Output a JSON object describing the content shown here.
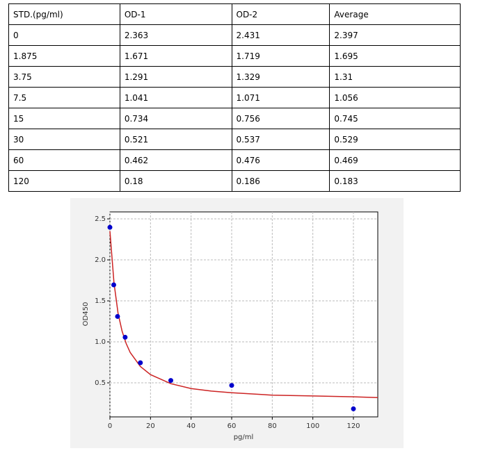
{
  "table": {
    "header": [
      "STD.(pg/ml)",
      "OD-1",
      "OD-2",
      "Average"
    ],
    "rows": [
      [
        "0",
        "2.363",
        "2.431",
        "2.397"
      ],
      [
        "1.875",
        "1.671",
        "1.719",
        "1.695"
      ],
      [
        "3.75",
        "1.291",
        "1.329",
        "1.31"
      ],
      [
        "7.5",
        "1.041",
        "1.071",
        "1.056"
      ],
      [
        "15",
        "0.734",
        "0.756",
        "0.745"
      ],
      [
        "30",
        "0.521",
        "0.537",
        "0.529"
      ],
      [
        "60",
        "0.462",
        "0.476",
        "0.469"
      ],
      [
        "120",
        "0.18",
        "0.186",
        "0.183"
      ]
    ]
  },
  "chart_data": {
    "type": "scatter",
    "x": [
      0,
      1.875,
      3.75,
      7.5,
      15,
      30,
      60,
      120
    ],
    "values": [
      2.397,
      1.695,
      1.31,
      1.056,
      0.745,
      0.529,
      0.469,
      0.183
    ],
    "color": "#0000cc",
    "fit": {
      "x": [
        0,
        2,
        4,
        6,
        8,
        10,
        15,
        20,
        30,
        40,
        50,
        60,
        80,
        100,
        120,
        132
      ],
      "values": [
        2.35,
        1.72,
        1.35,
        1.13,
        0.98,
        0.87,
        0.7,
        0.6,
        0.49,
        0.43,
        0.4,
        0.38,
        0.35,
        0.34,
        0.33,
        0.32
      ],
      "color": "#cc2222"
    },
    "xlabel": "pg/ml",
    "ylabel": "OD450",
    "xlim": [
      0,
      132
    ],
    "ylim": [
      0.085,
      2.585
    ],
    "xticks": [
      0,
      20,
      40,
      60,
      80,
      100,
      120
    ],
    "yticks": [
      0.5,
      {
        "value": 1,
        "label": "1.0"
      },
      1.5,
      {
        "value": 2,
        "label": "2.0"
      },
      2.5
    ],
    "grid": true
  }
}
